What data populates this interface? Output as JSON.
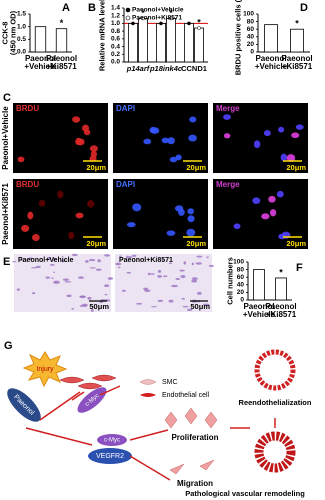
{
  "chart_data": [
    {
      "type": "bar",
      "label": "A",
      "ylabel": "CCK-8\n(450 nm OD)",
      "categories": [
        "Paeonol\n+Vehicle",
        "Paeonol\n+Ki8571"
      ],
      "values": [
        1.0,
        0.92
      ],
      "color": "#ffffff",
      "annotation": "*",
      "ylim": [
        0,
        1.5
      ],
      "yticks": [
        {
          "value": 0,
          "label": "0.0"
        },
        0.5,
        {
          "value": 1,
          "label": "1.0"
        },
        1.5
      ]
    },
    {
      "type": "bar",
      "label": "B",
      "ylabel": "Relative mRNA level",
      "categories": [
        "p14arf",
        "p18ink4c",
        "CCND1"
      ],
      "series": [
        {
          "name": "Paeonol+Vehicle",
          "color": "#000000",
          "values": [
            1.0,
            1.0,
            1.0
          ]
        },
        {
          "name": "Paeonol+Ki8571",
          "color": "#ffffff",
          "values": [
            1.13,
            1.13,
            0.88
          ],
          "annotation": "*"
        }
      ],
      "reference_line": 1,
      "reference_color": "#e00000",
      "legend": "upper left",
      "ylim": [
        0,
        1.4
      ],
      "yticks": [
        {
          "value": 0,
          "label": "0.0"
        },
        0.2,
        0.4,
        0.6,
        0.8,
        {
          "value": 1,
          "label": "1.0"
        },
        1.2,
        1.4
      ]
    },
    {
      "type": "bar",
      "label": "D",
      "ylabel": "BRDU positive cells (%)",
      "categories": [
        "Paeonol\n+Vehicle",
        "Paeonol\n+Ki8571"
      ],
      "values": [
        72,
        60
      ],
      "color": "#ffffff",
      "annotation": "*",
      "ylim": [
        0,
        100
      ],
      "yticks": [
        0,
        20,
        40,
        60,
        80,
        100
      ]
    },
    {
      "type": "bar",
      "label": "F",
      "ylabel": "Cell numbers",
      "categories": [
        "Paeonol\n+Vehicle",
        "Paeonol\n+Ki8571"
      ],
      "values": [
        80,
        58
      ],
      "color": "#ffffff",
      "annotation": "*",
      "ylim": [
        0,
        100
      ],
      "yticks": [
        0,
        20,
        40,
        60,
        80,
        100
      ]
    }
  ],
  "microscopy": {
    "label": "C",
    "rows": [
      "Paeonol+Vehicle",
      "Paeonol+Ki8571"
    ],
    "channels": [
      "BRDU",
      "DAPI",
      "Merge"
    ],
    "scale_bar": "20μm"
  },
  "staining": {
    "label": "E",
    "panels": [
      "Paeonol+Vehicle",
      "Paeonol+Ki8571"
    ],
    "scale_bar": "50μm"
  },
  "diagram": {
    "label": "G",
    "injury": "Injury",
    "paeonol": "Paeonol",
    "cmyc": "c-Myc",
    "vegfr2": "VEGFR2",
    "smc": "SMC",
    "endothelial": "Endothelial cell",
    "proliferation": "Proliferation",
    "migration": "Migration",
    "reendothelialization": "Reendothelialization",
    "remodeling": "Pathological vascular remodeling"
  }
}
